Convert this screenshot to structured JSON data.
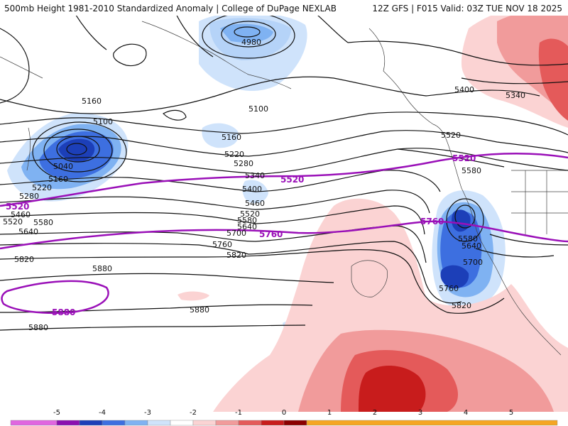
{
  "header": {
    "title": "500mb Height 1981-2010 Standardized Anomaly | College of DuPage NEXLAB",
    "run": "12Z GFS | F015 Valid: 03Z TUE NOV 18 2025"
  },
  "colors": {
    "contour": "#111111",
    "highlight_contour": "#9a10b8",
    "neg_light": "#cfe3fb",
    "neg_mid": "#7fb2f2",
    "neg_strong": "#3d6fe0",
    "neg_deep": "#1c3fb8",
    "pos_light": "#fbd3d3",
    "pos_mid": "#f19b9b",
    "pos_strong": "#e45a5a",
    "pos_deep": "#c81c1c"
  },
  "height_labels": [
    "4980",
    "5160",
    "5100",
    "5100",
    "5040",
    "5160",
    "5220",
    "5280",
    "5340",
    "5400",
    "5460",
    "5520",
    "5580",
    "5640",
    "5700",
    "5760",
    "5820",
    "5880",
    "5880",
    "5880",
    "5220",
    "5280",
    "5460",
    "5520",
    "5580",
    "5640",
    "5160",
    "5400",
    "5340",
    "5520",
    "5580",
    "5580",
    "5640",
    "5700",
    "5760",
    "5820",
    "5820"
  ],
  "highlight_labels": [
    "5520",
    "5520",
    "5520",
    "5760",
    "5760",
    "5880"
  ],
  "colorbar": {
    "ticks": [
      "-5",
      "-4",
      "-3",
      "-2",
      "-1",
      "0",
      "1",
      "2",
      "3",
      "4",
      "5"
    ],
    "colors": [
      "#e066e0",
      "#8a10b0",
      "#1c3fb8",
      "#3d6fe0",
      "#7fb2f2",
      "#cfe3fb",
      "#ffffff",
      "#fbd3d3",
      "#f19b9b",
      "#e45a5a",
      "#c81c1c",
      "#8b0000",
      "#f5a623"
    ]
  }
}
